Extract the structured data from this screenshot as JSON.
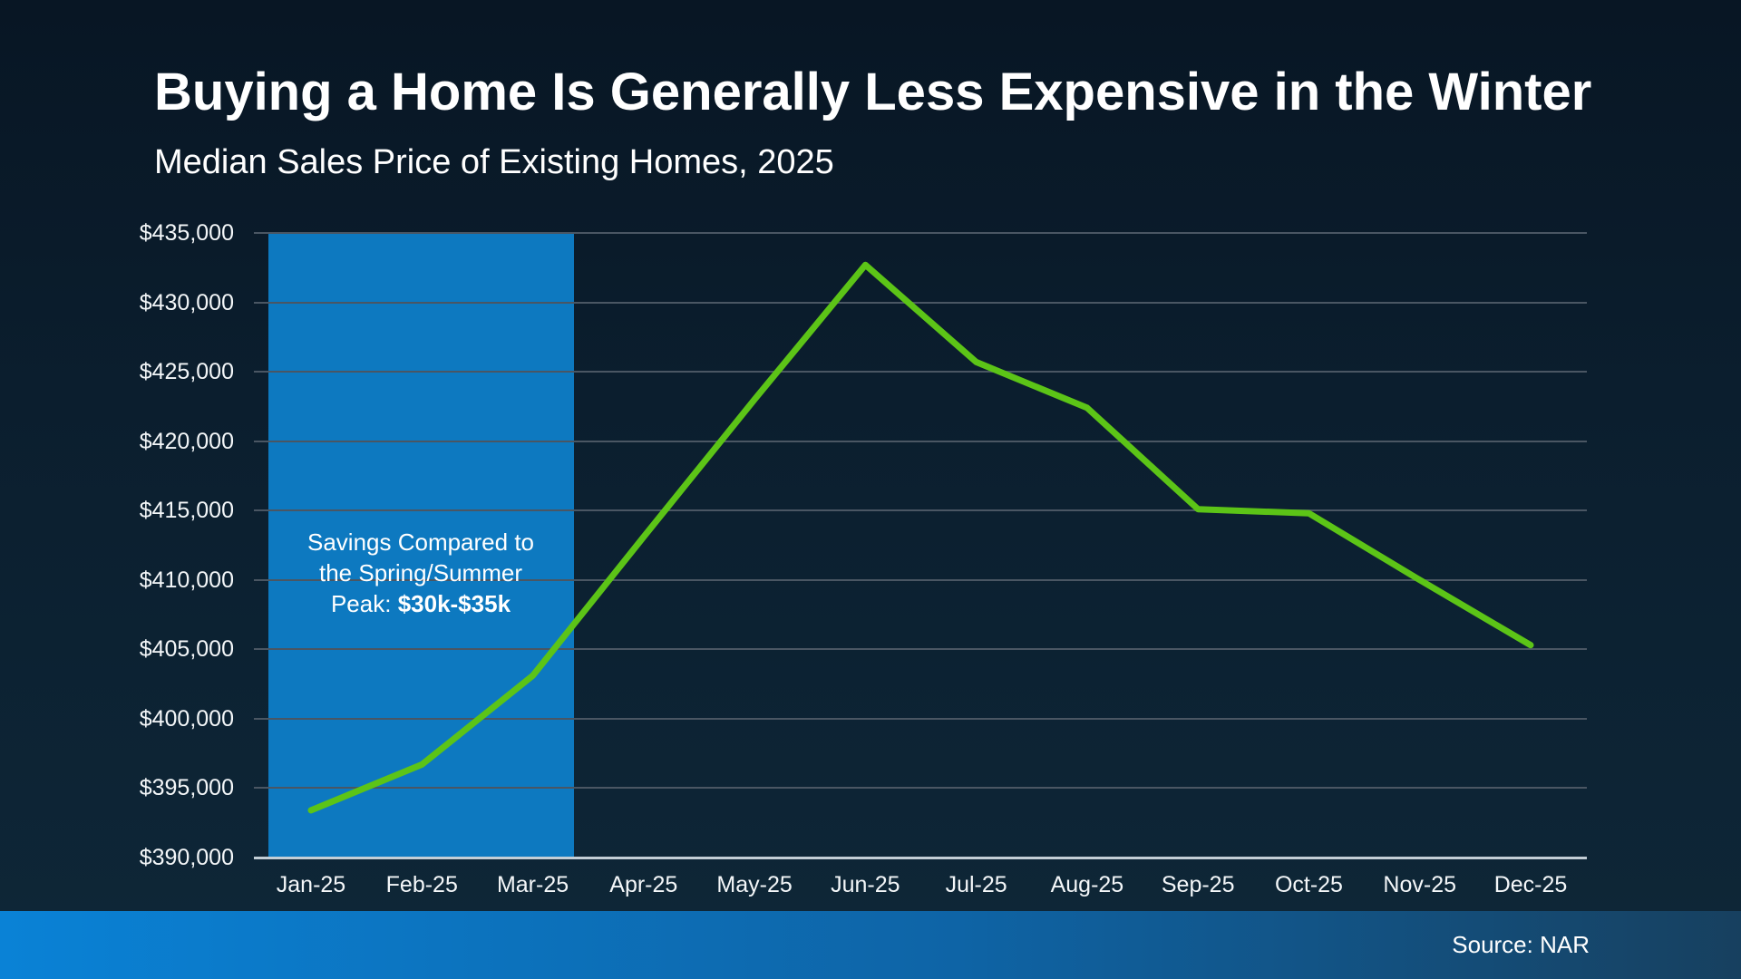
{
  "slide": {
    "title": "Buying a Home Is Generally Less Expensive in the Winter",
    "subtitle": "Median Sales Price of Existing Homes, 2025",
    "source": "Source: NAR"
  },
  "chart_data": {
    "type": "line",
    "title": "Buying a Home Is Generally Less Expensive in the Winter",
    "subtitle": "Median Sales Price of Existing Homes, 2025",
    "categories": [
      "Jan-25",
      "Feb-25",
      "Mar-25",
      "Apr-25",
      "May-25",
      "Jun-25",
      "Jul-25",
      "Aug-25",
      "Sep-25",
      "Oct-25",
      "Nov-25",
      "Dec-25"
    ],
    "series": [
      {
        "name": "Median Sales Price of Existing Homes",
        "color": "#5cc417",
        "values": [
          393400,
          396700,
          403100,
          413100,
          423000,
          432700,
          425700,
          422400,
          415100,
          414800,
          410000,
          405300
        ]
      }
    ],
    "ylim": [
      390000,
      435000
    ],
    "y_tick_step": 5000,
    "y_tick_labels": [
      "$435,000",
      "$430,000",
      "$425,000",
      "$420,000",
      "$415,000",
      "$410,000",
      "$405,000",
      "$400,000",
      "$395,000",
      "$390,000"
    ],
    "grid": true,
    "legend": "none",
    "annotation": {
      "region_categories": [
        "Jan-25",
        "Feb-25",
        "Mar-25"
      ],
      "region_color": "#0d79c0",
      "text_lines": [
        "Savings Compared to",
        "the Spring/Summer"
      ],
      "text_line3_prefix": "Peak: ",
      "text_line3_bold": "$30k-$35k"
    },
    "source": "Source: NAR"
  },
  "colors": {
    "background_top": "#081624",
    "background_bottom": "#0e2738",
    "gridline": "#4a5663",
    "axis_line": "#c3ced6",
    "line": "#5cc417",
    "footer_left": "#0a82d6",
    "footer_right": "#17405f"
  }
}
